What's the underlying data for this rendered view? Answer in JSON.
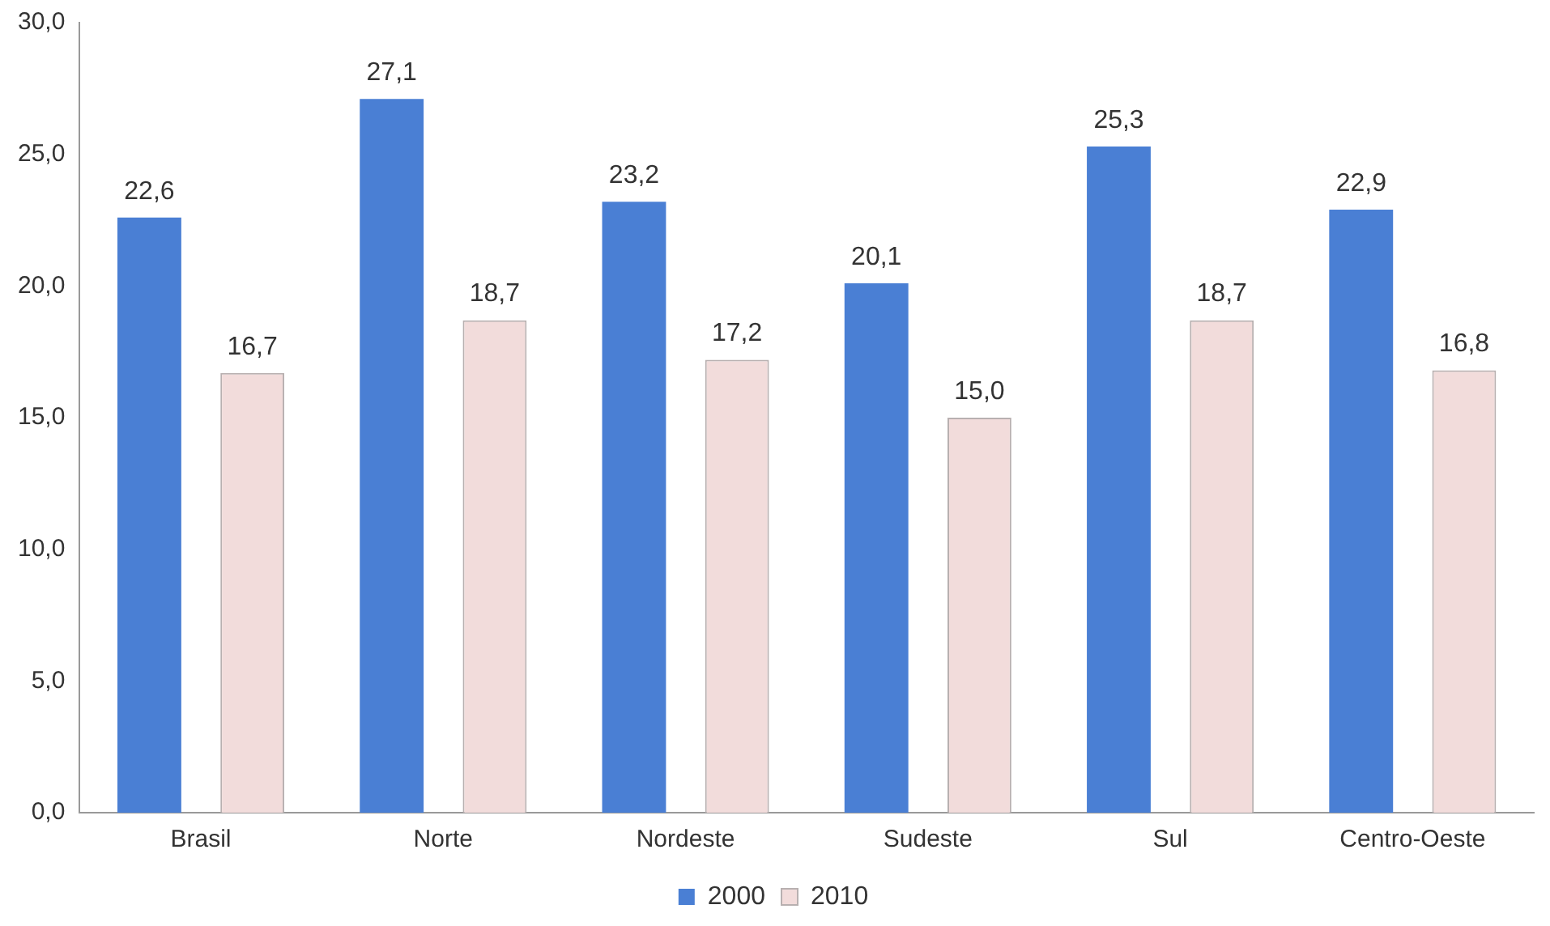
{
  "chart_data": {
    "type": "bar",
    "categories": [
      "Brasil",
      "Norte",
      "Nordeste",
      "Sudeste",
      "Sul",
      "Centro-Oeste"
    ],
    "series": [
      {
        "name": "2000",
        "color": "#4a7fd4",
        "values": [
          22.6,
          27.1,
          23.2,
          20.1,
          25.3,
          22.9
        ],
        "value_labels": [
          "22,6",
          "27,1",
          "23,2",
          "20,1",
          "25,3",
          "22,9"
        ]
      },
      {
        "name": "2010",
        "color": "#f2dcdb",
        "values": [
          16.7,
          18.7,
          17.2,
          15.0,
          18.7,
          16.8
        ],
        "value_labels": [
          "16,7",
          "18,7",
          "17,2",
          "15,0",
          "18,7",
          "16,8"
        ]
      }
    ],
    "ylim": [
      0,
      30
    ],
    "yticks": [
      {
        "value": 0,
        "label": "0,0"
      },
      {
        "value": 5,
        "label": "5,0"
      },
      {
        "value": 10,
        "label": "10,0"
      },
      {
        "value": 15,
        "label": "15,0"
      },
      {
        "value": 20,
        "label": "20,0"
      },
      {
        "value": 25,
        "label": "25,0"
      },
      {
        "value": 30,
        "label": "30,0"
      }
    ],
    "grid": false,
    "legend": "bottom"
  }
}
